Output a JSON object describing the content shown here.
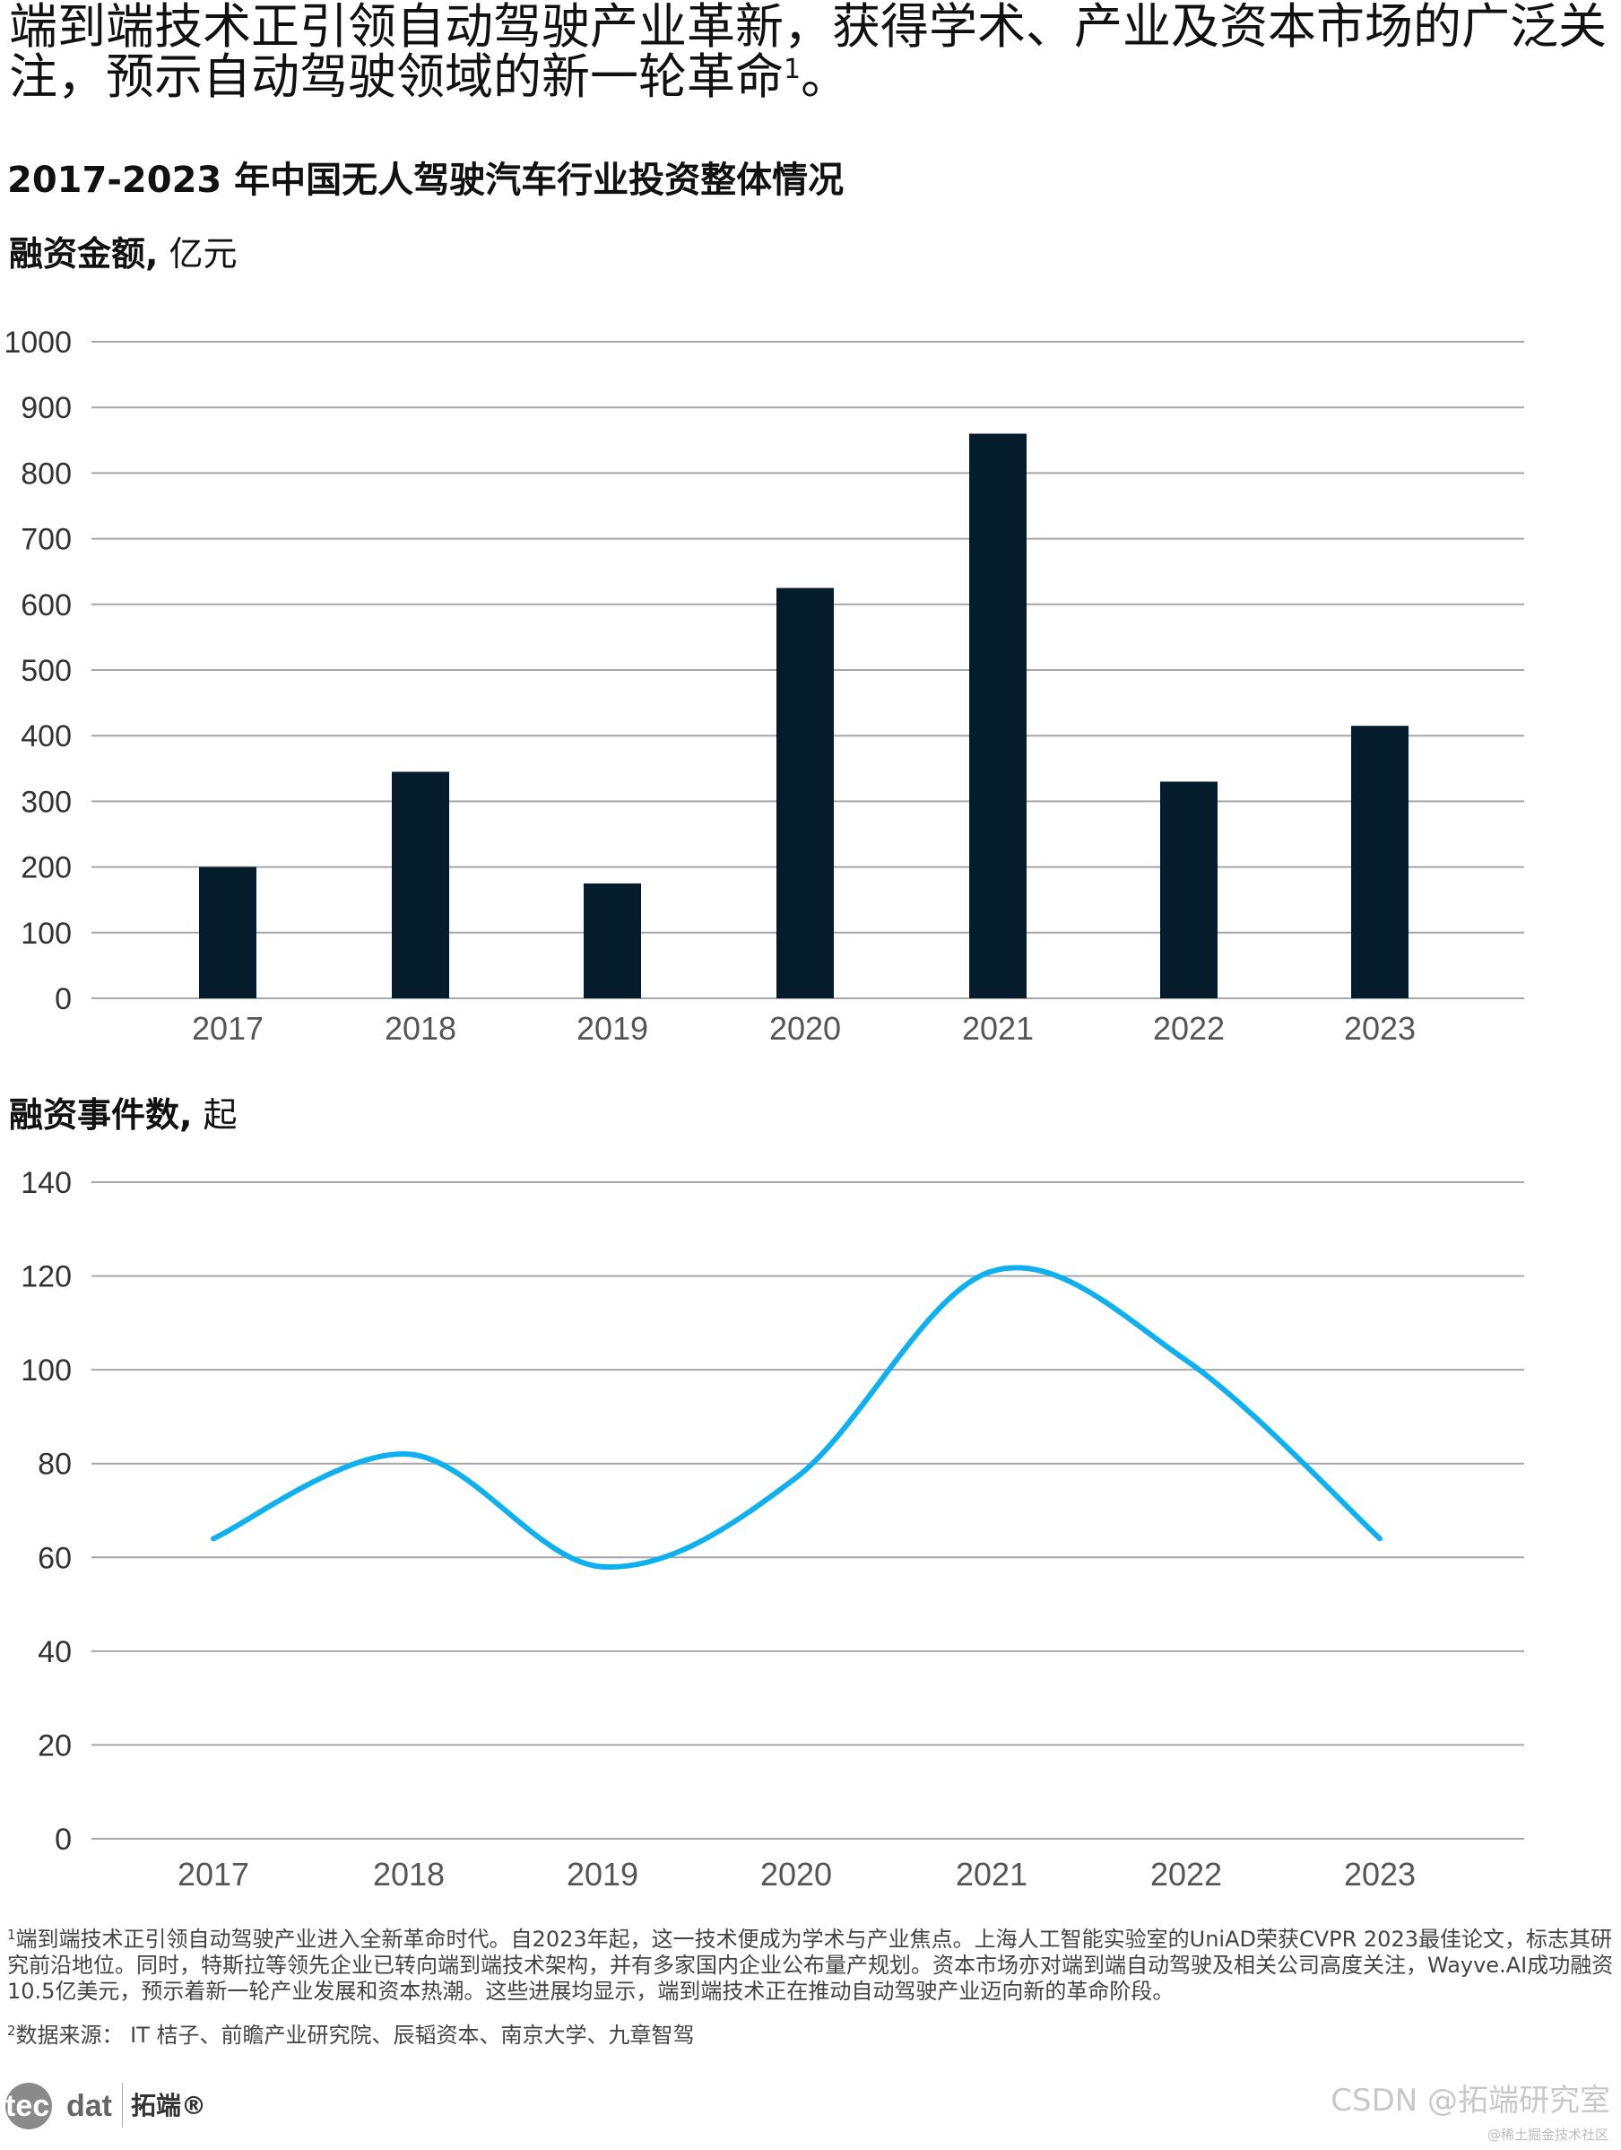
{
  "title": {
    "text": "端到端技术正引领自动驾驶产业革新，获得学术、产业及资本市场的广泛关注，预示自动驾驶领域的新一轮革命",
    "sup": "1",
    "end": "。"
  },
  "subtitle": "2017-2023 年中国无人驾驶汽车行业投资整体情况",
  "colors": {
    "bar": "#041c2b",
    "line": "#0fb0f0",
    "grid": "#a6a6a6"
  },
  "chart_data": [
    {
      "type": "bar",
      "ylabel_bold": "融资金额,",
      "ylabel_unit": " 亿元",
      "categories": [
        "2017",
        "2018",
        "2019",
        "2020",
        "2021",
        "2022",
        "2023"
      ],
      "values": [
        200,
        345,
        175,
        625,
        860,
        330,
        415
      ],
      "ylim": [
        0,
        1000
      ],
      "yticks": [
        "0",
        "100",
        "200",
        "300",
        "400",
        "500",
        "600",
        "700",
        "800",
        "900",
        "1000"
      ],
      "grid": true
    },
    {
      "type": "line",
      "smooth": true,
      "ylabel_bold": "融资事件数,",
      "ylabel_unit": " 起",
      "categories": [
        "2017",
        "2018",
        "2019",
        "2020",
        "2021",
        "2022",
        "2023"
      ],
      "values": [
        64,
        82,
        58,
        77,
        121,
        102,
        64
      ],
      "ylim": [
        0,
        140
      ],
      "yticks": [
        "0",
        "20",
        "40",
        "60",
        "80",
        "100",
        "120",
        "140"
      ],
      "grid": true
    }
  ],
  "footnotes": {
    "fn1_sup": "1",
    "fn1": "端到端技术正引领自动驾驶产业进入全新革命时代。自2023年起，这一技术便成为学术与产业焦点。上海人工智能实验室的UniAD荣获CVPR 2023最佳论文，标志其研究前沿地位。同时，特斯拉等领先企业已转向端到端技术架构，并有多家国内企业公布量产规划。资本市场亦对端到端自动驾驶及相关公司高度关注，Wayve.AI成功融资10.5亿美元，预示着新一轮产业发展和资本热潮。这些进展均显示，端到端技术正在推动自动驾驶产业迈向新的革命阶段。",
    "fn2_sup": "2",
    "fn2": "数据来源： IT 桔子、前瞻产业研究院、辰韬资本、南京大学、九章智驾"
  },
  "logo": {
    "tec": "tec",
    "dat": "dat",
    "cn": "拓端®"
  },
  "watermark": {
    "main": "CSDN @拓端研究室",
    "sub": "@稀土掘金技术社区"
  }
}
